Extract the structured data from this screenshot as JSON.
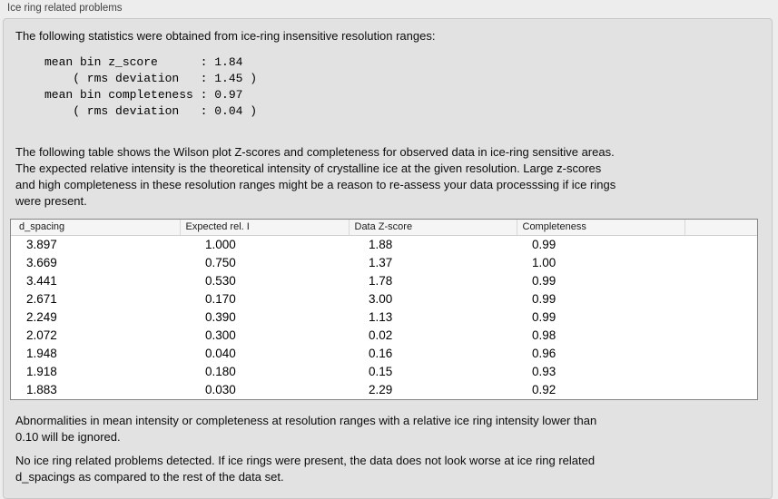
{
  "panel": {
    "title": "Ice ring related problems"
  },
  "intro": {
    "text": "The following statistics were obtained from ice-ring insensitive resolution ranges:"
  },
  "summary_stats": {
    "lines": [
      "mean bin z_score      : 1.84",
      "    ( rms deviation   : 1.45 )",
      "mean bin completeness : 0.97",
      "    ( rms deviation   : 0.04 )"
    ],
    "values": {
      "mean_bin_z_score": "1.84",
      "z_score_rms_deviation": "1.45",
      "mean_bin_completeness": "0.97",
      "completeness_rms_deviation": "0.04"
    }
  },
  "table_description": {
    "lines": [
      "The following table shows the Wilson plot Z-scores and completeness for observed data in ice-ring sensitive areas.",
      "The expected relative intensity is the theoretical intensity of crystalline ice at the given resolution. Large z-scores",
      "and high completeness in these resolution ranges might be a reason to re-assess your data processsing if ice rings",
      "were present."
    ]
  },
  "table": {
    "columns": [
      "d_spacing",
      "Expected rel. I",
      "Data Z-score",
      "Completeness",
      ""
    ],
    "rows": [
      [
        "3.897",
        "1.000",
        "1.88",
        "0.99"
      ],
      [
        "3.669",
        "0.750",
        "1.37",
        "1.00"
      ],
      [
        "3.441",
        "0.530",
        "1.78",
        "0.99"
      ],
      [
        "2.671",
        "0.170",
        "3.00",
        "0.99"
      ],
      [
        "2.249",
        "0.390",
        "1.13",
        "0.99"
      ],
      [
        "2.072",
        "0.300",
        "0.02",
        "0.98"
      ],
      [
        "1.948",
        "0.040",
        "0.16",
        "0.96"
      ],
      [
        "1.918",
        "0.180",
        "0.15",
        "0.93"
      ],
      [
        "1.883",
        "0.030",
        "2.29",
        "0.92"
      ]
    ]
  },
  "notes": {
    "ignore_note_lines": [
      "Abnormalities in mean intensity or completeness at resolution ranges with a relative ice ring intensity lower than",
      "0.10 will be ignored."
    ],
    "conclusion_lines": [
      "No ice ring related problems detected. If ice rings were present, the data does not look worse at ice ring related",
      "d_spacings as compared to the rest of the data set."
    ]
  },
  "colors": {
    "page_bg": "#ededed",
    "panel_bg": "#e2e2e2",
    "panel_border": "#c8c8c8",
    "table_bg": "#ffffff",
    "table_header_bg": "#f5f5f5",
    "table_border": "#858585"
  }
}
